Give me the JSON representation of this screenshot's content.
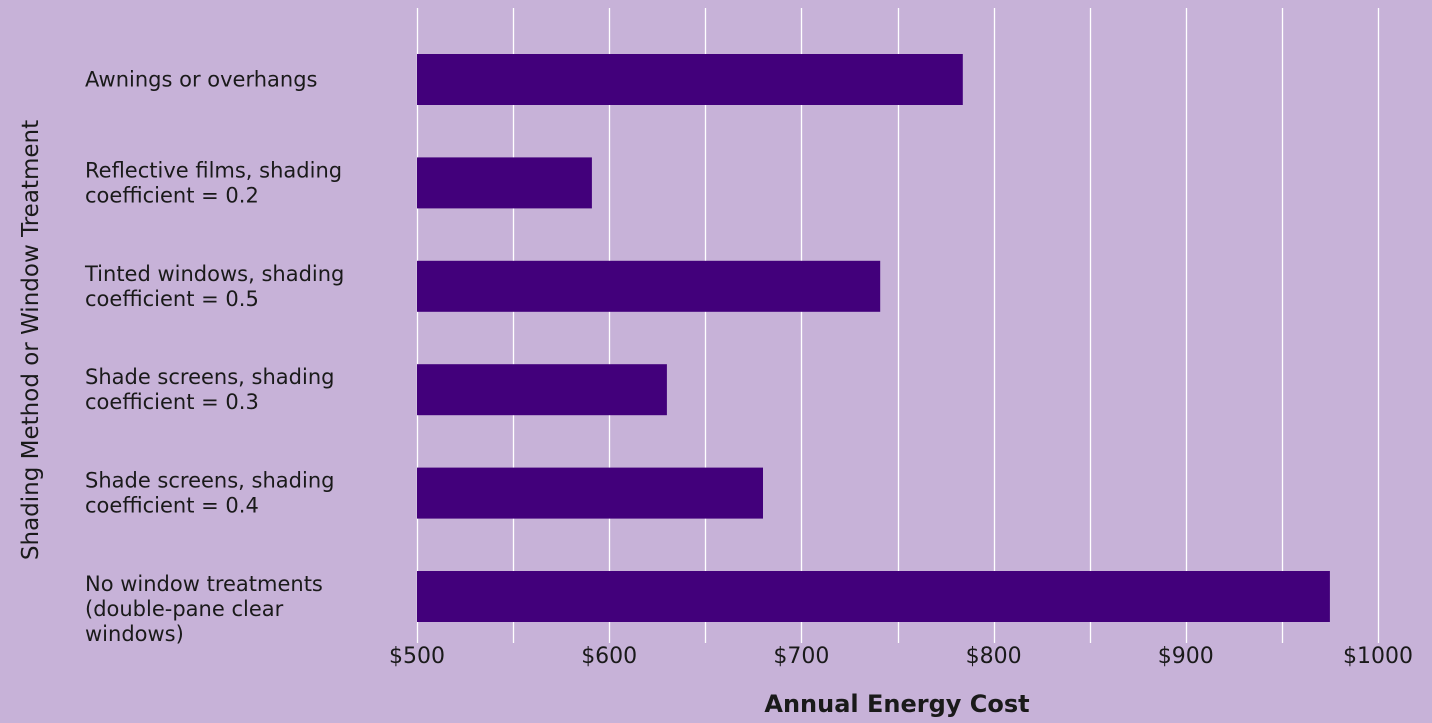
{
  "chart_data": {
    "type": "bar",
    "orientation": "horizontal",
    "title": "",
    "xlabel": "Annual Energy Cost",
    "ylabel": "Shading Method or Window Treatment",
    "categories": [
      [
        "Awnings or overhangs"
      ],
      [
        "Reflective films, shading",
        "coefficient = 0.2"
      ],
      [
        "Tinted windows, shading",
        "coefficient = 0.5"
      ],
      [
        "Shade screens, shading",
        "coefficient = 0.3"
      ],
      [
        "Shade screens, shading",
        "coefficient = 0.4"
      ],
      [
        "No window treatments",
        "(double-pane clear",
        "windows)"
      ]
    ],
    "values": [
      784,
      591,
      741,
      630,
      680,
      975
    ],
    "xlim": [
      500,
      1000
    ],
    "x_ticks": [
      500,
      600,
      700,
      800,
      900,
      1000
    ],
    "x_tick_labels": [
      "$500",
      "$600",
      "$700",
      "$800",
      "$900",
      "$1000"
    ],
    "grid": true,
    "legend": "none",
    "colors": {
      "background": "#c7b2d8",
      "bar": "#42007b",
      "grid": "#ffffff",
      "text": "#1a1a1a"
    }
  }
}
